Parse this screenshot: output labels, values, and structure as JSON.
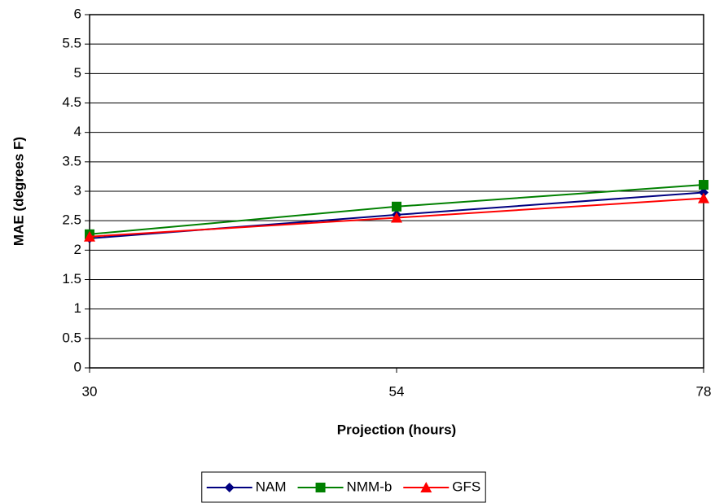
{
  "chart_data": {
    "type": "line",
    "x_label": "Projection (hours)",
    "y_label": "MAE (degrees F)",
    "x": [
      30,
      54,
      78
    ],
    "xlim": [
      30,
      78
    ],
    "xticks": [
      30,
      54,
      78
    ],
    "ylim": [
      0,
      6
    ],
    "yticks": [
      0,
      0.5,
      1,
      1.5,
      2,
      2.5,
      3,
      3.5,
      4,
      4.5,
      5,
      5.5,
      6
    ],
    "grid": true,
    "legend": "bottom",
    "series": [
      {
        "name": "NAM",
        "color": "#000080",
        "marker": "diamond",
        "values": [
          2.2,
          2.6,
          2.98
        ]
      },
      {
        "name": "NMM-b",
        "color": "#008000",
        "marker": "square",
        "values": [
          2.27,
          2.74,
          3.11
        ]
      },
      {
        "name": "GFS",
        "color": "#ff0000",
        "marker": "triangle",
        "values": [
          2.23,
          2.55,
          2.88
        ]
      }
    ]
  }
}
